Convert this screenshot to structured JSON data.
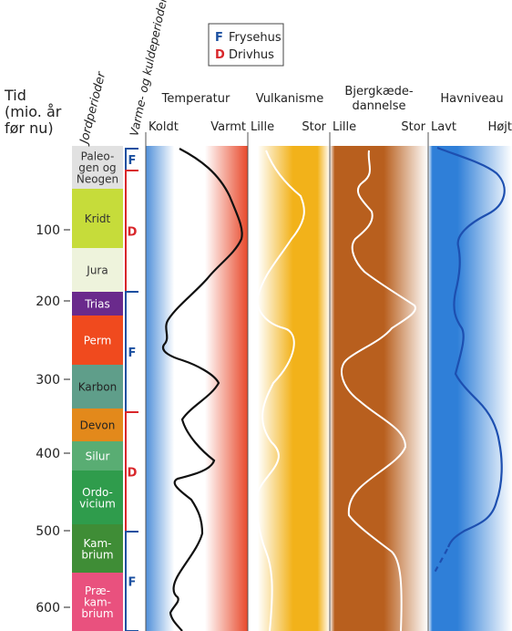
{
  "legend": {
    "frysehus_code": "F",
    "frysehus_label": "Frysehus",
    "drivhus_code": "D",
    "drivhus_label": "Drivhus"
  },
  "time_axis": {
    "title_lines": [
      "Tid",
      "(mio. år",
      "før nu)"
    ],
    "ticks": [
      "100",
      "200",
      "300",
      "400",
      "500",
      "600"
    ]
  },
  "headers": {
    "jordperioder": "Jordperioder",
    "varme_kulde": "Varme- og kuldeperioder",
    "temperatur": "Temperatur",
    "vulkanisme": "Vulkanisme",
    "bjergkaede_lines": [
      "Bjergkæde-",
      "dannelse"
    ],
    "havniveau": "Havniveau"
  },
  "subheaders": {
    "temp_low": "Koldt",
    "temp_high": "Varmt",
    "vulk_low": "Lille",
    "vulk_high": "Stor",
    "bjerg_low": "Lille",
    "bjerg_high": "Stor",
    "hav_low": "Lavt",
    "hav_high": "Højt"
  },
  "periods": [
    {
      "lines": [
        "Paleo-",
        "gen og",
        "Neogen"
      ],
      "color": "#e1e1e1",
      "text_color": "#333333"
    },
    {
      "lines": [
        "Kridt"
      ],
      "color": "#c6dc3a",
      "text_color": "#333333"
    },
    {
      "lines": [
        "Jura"
      ],
      "color": "#eef3dc",
      "text_color": "#333333"
    },
    {
      "lines": [
        "Trias"
      ],
      "color": "#6a2a8c",
      "text_color": "#ffffff"
    },
    {
      "lines": [
        "Perm"
      ],
      "color": "#f04a1e",
      "text_color": "#ffffff"
    },
    {
      "lines": [
        "Karbon"
      ],
      "color": "#5f9e8a",
      "text_color": "#222222"
    },
    {
      "lines": [
        "Devon"
      ],
      "color": "#e3891b",
      "text_color": "#222222"
    },
    {
      "lines": [
        "Silur"
      ],
      "color": "#59ad73",
      "text_color": "#ffffff"
    },
    {
      "lines": [
        "Ordo-",
        "vicium"
      ],
      "color": "#2f9c4c",
      "text_color": "#ffffff"
    },
    {
      "lines": [
        "Kam-",
        "brium"
      ],
      "color": "#3f8d36",
      "text_color": "#ffffff"
    },
    {
      "lines": [
        "Præ-",
        "kam-",
        "brium"
      ],
      "color": "#e9517e",
      "text_color": "#ffffff"
    }
  ],
  "climate_periods": [
    {
      "code": "F",
      "type": "frysehus"
    },
    {
      "code": "D",
      "type": "drivhus"
    },
    {
      "code": "F",
      "type": "frysehus"
    },
    {
      "code": "D",
      "type": "drivhus"
    },
    {
      "code": "F",
      "type": "frysehus"
    }
  ],
  "colors": {
    "frysehus": "#1a4fa0",
    "drivhus": "#d8262a",
    "temp_band_cold": "#4f8fd9",
    "temp_band_hot": "#e8482a",
    "volcanism_band": "#f2b21a",
    "mountain_band": "#b85f1e",
    "sea_band": "#2f7fd8",
    "temp_curve": "#111111",
    "sea_curve": "#1d4fb0",
    "light_curve": "#ffffff"
  }
}
